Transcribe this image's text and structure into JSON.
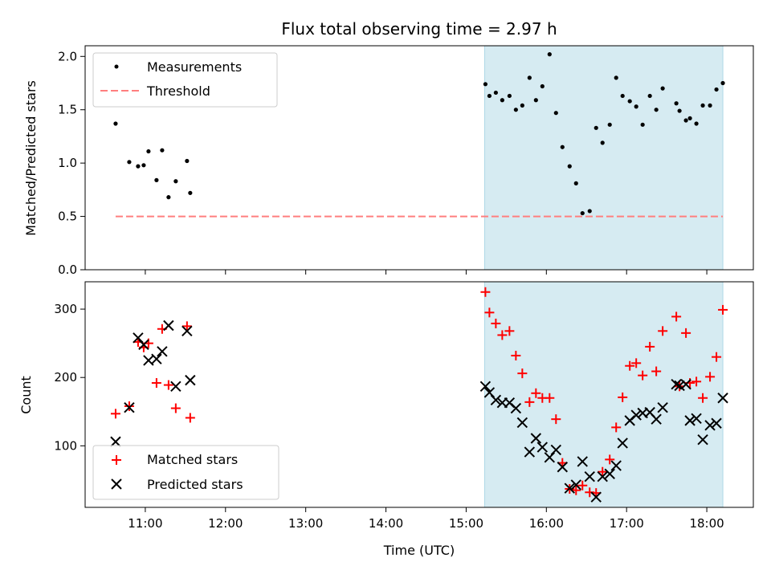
{
  "chart_data": [
    {
      "type": "scatter",
      "title": "Flux total observing time = 2.97 h",
      "xlabel": "",
      "ylabel": "Matched/Predicted stars",
      "xlim": [
        10.25,
        18.58
      ],
      "ylim": [
        0.0,
        2.1
      ],
      "yticks": [
        0.0,
        0.5,
        1.0,
        1.5,
        2.0
      ],
      "ytick_labels": [
        "0.0",
        "0.5",
        "1.0",
        "1.5",
        "2.0"
      ],
      "shaded_span": {
        "x0": 15.23,
        "x1": 18.2,
        "color": "#add8e6"
      },
      "legend": {
        "placement": "upper left",
        "entries": [
          "Measurements",
          "Threshold"
        ]
      },
      "series": [
        {
          "name": "Measurements",
          "color": "#000000",
          "marker": "dot",
          "points": [
            [
              10.63,
              1.37
            ],
            [
              10.8,
              1.01
            ],
            [
              10.91,
              0.97
            ],
            [
              10.98,
              0.98
            ],
            [
              11.04,
              1.11
            ],
            [
              11.14,
              0.84
            ],
            [
              11.21,
              1.12
            ],
            [
              11.29,
              0.68
            ],
            [
              11.38,
              0.83
            ],
            [
              11.52,
              1.02
            ],
            [
              11.56,
              0.72
            ],
            [
              15.24,
              1.74
            ],
            [
              15.29,
              1.63
            ],
            [
              15.37,
              1.66
            ],
            [
              15.45,
              1.59
            ],
            [
              15.54,
              1.63
            ],
            [
              15.62,
              1.5
            ],
            [
              15.7,
              1.54
            ],
            [
              15.79,
              1.8
            ],
            [
              15.87,
              1.59
            ],
            [
              15.95,
              1.72
            ],
            [
              16.04,
              2.02
            ],
            [
              16.12,
              1.47
            ],
            [
              16.2,
              1.15
            ],
            [
              16.29,
              0.97
            ],
            [
              16.37,
              0.81
            ],
            [
              16.45,
              0.53
            ],
            [
              16.54,
              0.55
            ],
            [
              16.62,
              1.33
            ],
            [
              16.7,
              1.19
            ],
            [
              16.79,
              1.36
            ],
            [
              16.87,
              1.8
            ],
            [
              16.95,
              1.63
            ],
            [
              17.04,
              1.58
            ],
            [
              17.12,
              1.53
            ],
            [
              17.2,
              1.36
            ],
            [
              17.29,
              1.63
            ],
            [
              17.37,
              1.5
            ],
            [
              17.45,
              1.7
            ],
            [
              17.62,
              1.56
            ],
            [
              17.66,
              1.49
            ],
            [
              17.74,
              1.4
            ],
            [
              17.79,
              1.42
            ],
            [
              17.87,
              1.37
            ],
            [
              17.95,
              1.54
            ],
            [
              18.04,
              1.54
            ],
            [
              18.12,
              1.69
            ],
            [
              18.2,
              1.75
            ]
          ]
        },
        {
          "name": "Threshold",
          "color": "#ff7f7f",
          "style": "dashed",
          "points": [
            [
              10.63,
              0.5
            ],
            [
              18.2,
              0.5
            ]
          ]
        }
      ]
    },
    {
      "type": "scatter",
      "title": "",
      "xlabel": "Time (UTC)",
      "ylabel": "Count",
      "xlim": [
        10.25,
        18.58
      ],
      "ylim": [
        10,
        340
      ],
      "yticks": [
        100,
        200,
        300
      ],
      "ytick_labels": [
        "100",
        "200",
        "300"
      ],
      "xticks": [
        11,
        12,
        13,
        14,
        15,
        16,
        17,
        18
      ],
      "xtick_labels": [
        "11:00",
        "12:00",
        "13:00",
        "14:00",
        "15:00",
        "16:00",
        "17:00",
        "18:00"
      ],
      "shaded_span": {
        "x0": 15.23,
        "x1": 18.2,
        "color": "#add8e6"
      },
      "legend": {
        "placement": "lower left",
        "entries": [
          "Matched stars",
          "Predicted stars"
        ]
      },
      "series": [
        {
          "name": "Matched stars",
          "color": "#ff0000",
          "marker": "plus",
          "points": [
            [
              10.63,
              147
            ],
            [
              10.8,
              158
            ],
            [
              10.91,
              252
            ],
            [
              10.98,
              244
            ],
            [
              11.04,
              250
            ],
            [
              11.14,
              192
            ],
            [
              11.21,
              271
            ],
            [
              11.29,
              189
            ],
            [
              11.38,
              155
            ],
            [
              11.52,
              275
            ],
            [
              11.56,
              141
            ],
            [
              15.24,
              325
            ],
            [
              15.29,
              295
            ],
            [
              15.37,
              279
            ],
            [
              15.45,
              262
            ],
            [
              15.54,
              268
            ],
            [
              15.62,
              232
            ],
            [
              15.7,
              206
            ],
            [
              15.79,
              164
            ],
            [
              15.87,
              177
            ],
            [
              15.95,
              170
            ],
            [
              16.04,
              170
            ],
            [
              16.12,
              139
            ],
            [
              16.2,
              75
            ],
            [
              16.29,
              37
            ],
            [
              16.37,
              35
            ],
            [
              16.45,
              42
            ],
            [
              16.54,
              32
            ],
            [
              16.62,
              31
            ],
            [
              16.7,
              62
            ],
            [
              16.79,
              80
            ],
            [
              16.87,
              127
            ],
            [
              16.95,
              171
            ],
            [
              17.04,
              217
            ],
            [
              17.12,
              221
            ],
            [
              17.2,
              203
            ],
            [
              17.29,
              245
            ],
            [
              17.37,
              209
            ],
            [
              17.45,
              268
            ],
            [
              17.62,
              289
            ],
            [
              17.66,
              187
            ],
            [
              17.74,
              265
            ],
            [
              17.79,
              192
            ],
            [
              17.87,
              194
            ],
            [
              17.95,
              170
            ],
            [
              18.04,
              201
            ],
            [
              18.12,
              230
            ],
            [
              18.2,
              299
            ]
          ]
        },
        {
          "name": "Predicted stars",
          "color": "#000000",
          "marker": "x",
          "points": [
            [
              10.63,
              106
            ],
            [
              10.8,
              156
            ],
            [
              10.91,
              258
            ],
            [
              10.98,
              248
            ],
            [
              11.04,
              225
            ],
            [
              11.14,
              227
            ],
            [
              11.21,
              238
            ],
            [
              11.29,
              276
            ],
            [
              11.38,
              187
            ],
            [
              11.52,
              268
            ],
            [
              11.56,
              196
            ],
            [
              15.24,
              187
            ],
            [
              15.29,
              178
            ],
            [
              15.37,
              167
            ],
            [
              15.45,
              163
            ],
            [
              15.54,
              163
            ],
            [
              15.62,
              155
            ],
            [
              15.7,
              134
            ],
            [
              15.79,
              91
            ],
            [
              15.87,
              111
            ],
            [
              15.95,
              98
            ],
            [
              16.04,
              83
            ],
            [
              16.12,
              94
            ],
            [
              16.2,
              69
            ],
            [
              16.29,
              38
            ],
            [
              16.37,
              43
            ],
            [
              16.45,
              77
            ],
            [
              16.54,
              55
            ],
            [
              16.62,
              25
            ],
            [
              16.7,
              55
            ],
            [
              16.79,
              59
            ],
            [
              16.87,
              71
            ],
            [
              16.95,
              104
            ],
            [
              17.04,
              137
            ],
            [
              17.12,
              145
            ],
            [
              17.2,
              148
            ],
            [
              17.29,
              149
            ],
            [
              17.37,
              139
            ],
            [
              17.45,
              156
            ],
            [
              17.62,
              190
            ],
            [
              17.66,
              188
            ],
            [
              17.74,
              190
            ],
            [
              17.79,
              137
            ],
            [
              17.87,
              140
            ],
            [
              17.95,
              109
            ],
            [
              18.04,
              130
            ],
            [
              18.12,
              133
            ],
            [
              18.2,
              170
            ]
          ]
        }
      ]
    }
  ]
}
